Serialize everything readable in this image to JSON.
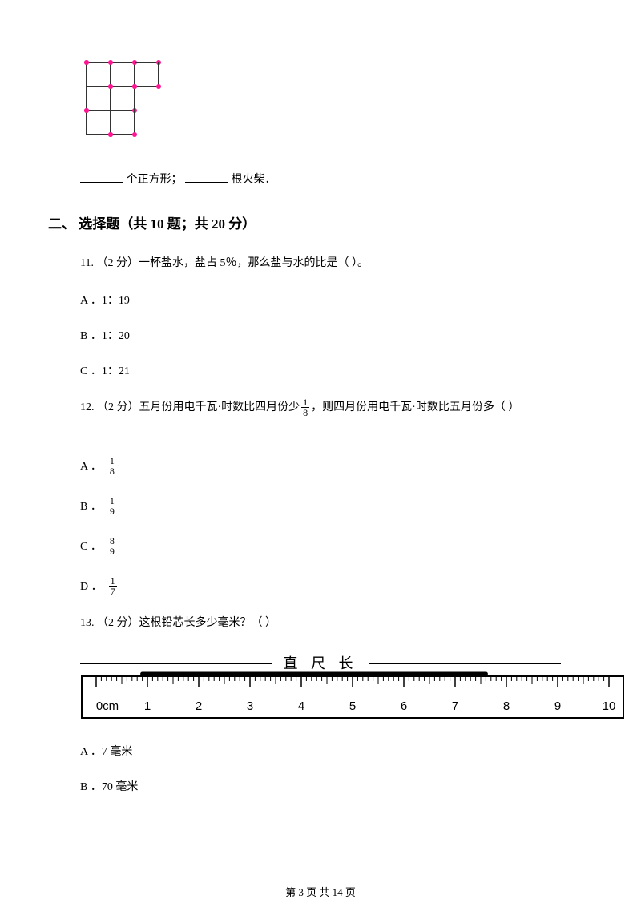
{
  "matchstick_figure": {
    "match_color": "#333333",
    "dot_color": "#ff1493",
    "stroke_width": 2,
    "dot_radius": 3
  },
  "fill_blank": {
    "text1": "个正方形；",
    "text2": "根火柴．"
  },
  "section2": {
    "title": "二、 选择题（共 10 题；共 20 分）"
  },
  "q11": {
    "text": "11.  （2 分）一杯盐水，盐占 5％，那么盐与水的比是（    ）。",
    "a": "A ．1：19",
    "b": "B ．1：20",
    "c": "C ．1：21"
  },
  "q12": {
    "pre": "12.  （2 分）五月份用电千瓦·时数比四月份少 ",
    "frac_num": "1",
    "frac_den": "8",
    "post": " ，则四月份用电千瓦·时数比五月份多（    ）",
    "a_prefix": "A ．",
    "a_num": "1",
    "a_den": "8",
    "b_prefix": "B ．",
    "b_num": "1",
    "b_den": "9",
    "c_prefix": "C ．",
    "c_num": "8",
    "c_den": "9",
    "d_prefix": "D ．",
    "d_num": "1",
    "d_den": "7"
  },
  "q13": {
    "text": "13.  （2 分）这根铅芯长多少毫米？（    ）",
    "ruler_title": "直 尺 长",
    "ruler": {
      "labels": [
        "0cm",
        "1",
        "2",
        "3",
        "4",
        "5",
        "6",
        "7",
        "8",
        "9",
        "10"
      ],
      "pencil_start_cm": 0.9,
      "pencil_end_cm": 7.6,
      "bg_color": "#ffffff",
      "border_color": "#000000",
      "major_tick_height": 14,
      "mid_tick_height": 10,
      "minor_tick_height": 6,
      "font_size": 15
    },
    "a": "A ．7 毫米",
    "b": "B ．70 毫米"
  },
  "footer": "第 3 页 共 14 页"
}
